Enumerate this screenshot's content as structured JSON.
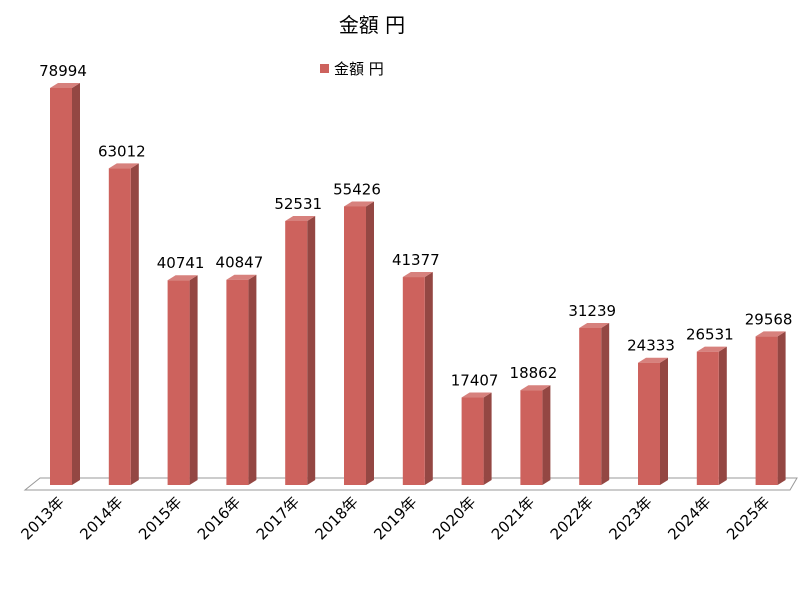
{
  "chart_data": {
    "type": "bar",
    "title": "金額 円",
    "categories": [
      "2013年",
      "2014年",
      "2015年",
      "2016年",
      "2017年",
      "2018年",
      "2019年",
      "2020年",
      "2021年",
      "2022年",
      "2023年",
      "2024年",
      "2025年"
    ],
    "series": [
      {
        "name": "金額 円",
        "color": "#cd625d",
        "values": [
          78994,
          63012,
          40741,
          40847,
          52531,
          55426,
          41377,
          17407,
          18862,
          31239,
          24333,
          26531,
          29568
        ]
      }
    ],
    "legend": "top"
  }
}
